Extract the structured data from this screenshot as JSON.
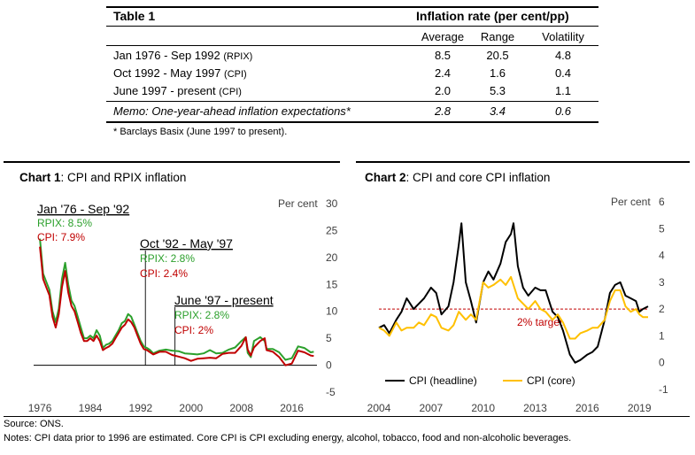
{
  "table": {
    "title": "Table 1",
    "group_header": "Inflation rate (per cent/pp)",
    "columns": [
      "Average",
      "Range",
      "Volatility"
    ],
    "rows": [
      {
        "period": "Jan 1976 - Sep 1992",
        "measure": "(RPIX)",
        "values": [
          "8.5",
          "20.5",
          "4.8"
        ]
      },
      {
        "period": "Oct 1992 - May 1997",
        "measure": "(CPI)",
        "values": [
          "2.4",
          "1.6",
          "0.4"
        ]
      },
      {
        "period": "June 1997 - present",
        "measure": "(CPI)",
        "values": [
          "2.0",
          "5.3",
          "1.1"
        ]
      }
    ],
    "memo": {
      "label": "Memo: One-year-ahead inflation expectations*",
      "values": [
        "2.8",
        "3.4",
        "0.6"
      ]
    },
    "footnote": "* Barclays Basix (June 1997 to present)."
  },
  "chart_data": [
    {
      "type": "line",
      "title_bold": "Chart 1",
      "title_rest": ": CPI and RPIX inflation",
      "ylabel": "Per cent",
      "ylim": [
        -5,
        30
      ],
      "yticks": [
        "30",
        "25",
        "20",
        "15",
        "10",
        "5",
        "0",
        "-5"
      ],
      "xticks": [
        "1976",
        "1984",
        "1992",
        "2000",
        "2008",
        "2016"
      ],
      "xlim": [
        1975,
        2020
      ],
      "annotations": [
        {
          "heading": "Jan '76 -  Sep '92",
          "rpix": "RPIX: 8.5%",
          "cpi": "CPI: 7.9%"
        },
        {
          "heading": "Oct '92 - May '97",
          "rpix": "RPIX: 2.8%",
          "cpi": "CPI: 2.4%"
        },
        {
          "heading": "June '97 - present",
          "rpix": "RPIX: 2.8%",
          "cpi": "CPI: 2%"
        }
      ],
      "period_breaks": [
        1992.75,
        1997.45
      ],
      "series": [
        {
          "name": "RPIX",
          "color": "#2ca02c",
          "x": [
            1976,
            1976.5,
            1977,
            1977.5,
            1978,
            1978.5,
            1979,
            1979.5,
            1980,
            1980.5,
            1981,
            1981.5,
            1982,
            1982.5,
            1983,
            1983.5,
            1984,
            1984.5,
            1985,
            1985.5,
            1986,
            1986.5,
            1987,
            1987.5,
            1988,
            1988.5,
            1989,
            1989.5,
            1990,
            1990.5,
            1991,
            1991.5,
            1992,
            1992.5,
            1993,
            1993.5,
            1994,
            1995,
            1996,
            1997,
            1998,
            1999,
            2000,
            2001,
            2002,
            2003,
            2004,
            2005,
            2006,
            2007,
            2008,
            2008.7,
            2009,
            2009.5,
            2010,
            2011,
            2011.7,
            2012,
            2013,
            2014,
            2015,
            2016,
            2017,
            2018,
            2019,
            2019.5
          ],
          "y": [
            23.5,
            17,
            15.5,
            14,
            10,
            8,
            10.5,
            16,
            19,
            15,
            12,
            11,
            9,
            7,
            5,
            5,
            5.5,
            5,
            6.5,
            5.5,
            3.2,
            3.8,
            4,
            4.5,
            5.5,
            6.5,
            7.8,
            8.2,
            9.5,
            9,
            7.5,
            6,
            4.5,
            3.5,
            3.2,
            2.8,
            2.2,
            2.7,
            2.9,
            2.7,
            2.6,
            2.2,
            2.1,
            2.0,
            2.2,
            2.8,
            2.2,
            2.3,
            2.9,
            3.3,
            4.5,
            5.2,
            2.3,
            1.5,
            4.5,
            5.2,
            4.5,
            3.0,
            3.0,
            2.4,
            1.0,
            1.3,
            3.5,
            3.2,
            2.4,
            2.5
          ]
        },
        {
          "name": "CPI",
          "color": "#c00000",
          "x": [
            1976,
            1976.5,
            1977,
            1977.5,
            1978,
            1978.5,
            1979,
            1979.5,
            1980,
            1980.5,
            1981,
            1981.5,
            1982,
            1982.5,
            1983,
            1983.5,
            1984,
            1984.5,
            1985,
            1985.5,
            1986,
            1986.5,
            1987,
            1987.5,
            1988,
            1988.5,
            1989,
            1989.5,
            1990,
            1990.5,
            1991,
            1991.5,
            1992,
            1992.5,
            1993,
            1993.5,
            1994,
            1995,
            1996,
            1997,
            1998,
            1999,
            2000,
            2001,
            2002,
            2003,
            2004,
            2005,
            2006,
            2007,
            2008,
            2008.7,
            2009,
            2009.5,
            2010,
            2011,
            2011.7,
            2012,
            2013,
            2014,
            2015,
            2016,
            2017,
            2018,
            2019,
            2019.5
          ],
          "y": [
            22,
            16,
            14.5,
            13,
            9,
            7,
            9.5,
            14.5,
            17.5,
            13.5,
            11,
            10,
            8,
            6,
            4.5,
            4.5,
            5,
            4.5,
            5.5,
            4.5,
            2.8,
            3.2,
            3.5,
            4,
            5,
            6,
            7,
            7.5,
            8.5,
            8,
            7,
            5.5,
            4,
            3,
            2.8,
            2.4,
            2.0,
            2.5,
            2.5,
            1.9,
            1.6,
            1.3,
            0.8,
            1.2,
            1.3,
            1.4,
            1.3,
            2.1,
            2.3,
            2.3,
            3.6,
            5.2,
            2.9,
            1.8,
            3.3,
            4.5,
            5.0,
            2.8,
            2.5,
            1.5,
            0.0,
            0.3,
            2.7,
            2.4,
            1.8,
            1.7
          ]
        }
      ]
    },
    {
      "type": "line",
      "title_bold": "Chart 2",
      "title_rest": ": CPI and core CPI inflation",
      "ylabel": "Per cent",
      "ylim": [
        -1,
        6
      ],
      "yticks": [
        "6",
        "5",
        "4",
        "3",
        "2",
        "1",
        "0",
        "-1"
      ],
      "xticks": [
        "2004",
        "2007",
        "2010",
        "2013",
        "2016",
        "2019"
      ],
      "xlim": [
        2004,
        2019.5
      ],
      "target": {
        "value": 2,
        "label": "2% target"
      },
      "legend": [
        "CPI (headline)",
        "CPI (core)"
      ],
      "series": [
        {
          "name": "CPI (headline)",
          "color": "#000000",
          "x": [
            2004,
            2004.3,
            2004.6,
            2005,
            2005.3,
            2005.6,
            2006,
            2006.3,
            2006.6,
            2007,
            2007.3,
            2007.6,
            2008,
            2008.3,
            2008.6,
            2008.75,
            2009,
            2009.3,
            2009.6,
            2010,
            2010.3,
            2010.6,
            2011,
            2011.3,
            2011.6,
            2011.75,
            2012,
            2012.3,
            2012.6,
            2013,
            2013.3,
            2013.6,
            2014,
            2014.3,
            2014.6,
            2015,
            2015.3,
            2015.6,
            2016,
            2016.3,
            2016.6,
            2017,
            2017.3,
            2017.6,
            2017.9,
            2018.2,
            2018.5,
            2018.8,
            2019,
            2019.2,
            2019.5
          ],
          "y": [
            1.3,
            1.4,
            1.1,
            1.6,
            1.9,
            2.4,
            2.0,
            2.2,
            2.4,
            2.8,
            2.6,
            1.8,
            2.1,
            3.0,
            4.4,
            5.2,
            3.0,
            2.3,
            1.5,
            3.0,
            3.4,
            3.1,
            3.7,
            4.5,
            4.8,
            5.2,
            3.6,
            2.8,
            2.5,
            2.8,
            2.7,
            2.7,
            1.9,
            1.7,
            1.2,
            0.3,
            0.0,
            0.1,
            0.3,
            0.4,
            0.6,
            1.6,
            2.6,
            2.9,
            3.0,
            2.5,
            2.4,
            2.3,
            1.9,
            2.0,
            2.1
          ]
        },
        {
          "name": "CPI (core)",
          "color": "#ffc000",
          "x": [
            2004,
            2004.3,
            2004.6,
            2005,
            2005.3,
            2005.6,
            2006,
            2006.3,
            2006.6,
            2007,
            2007.3,
            2007.6,
            2008,
            2008.3,
            2008.6,
            2009,
            2009.3,
            2009.6,
            2010,
            2010.3,
            2010.6,
            2011,
            2011.3,
            2011.6,
            2012,
            2012.3,
            2012.6,
            2013,
            2013.3,
            2013.6,
            2014,
            2014.3,
            2014.6,
            2015,
            2015.3,
            2015.6,
            2016,
            2016.3,
            2016.6,
            2017,
            2017.3,
            2017.6,
            2017.9,
            2018.2,
            2018.5,
            2018.8,
            2019,
            2019.2,
            2019.5
          ],
          "y": [
            1.3,
            1.2,
            1.0,
            1.5,
            1.2,
            1.3,
            1.3,
            1.5,
            1.4,
            1.8,
            1.7,
            1.3,
            1.2,
            1.4,
            1.9,
            1.6,
            1.8,
            1.6,
            3.0,
            2.8,
            2.9,
            3.1,
            2.9,
            3.2,
            2.4,
            2.2,
            2.0,
            2.3,
            2.0,
            1.9,
            1.6,
            1.8,
            1.5,
            0.9,
            0.9,
            1.1,
            1.2,
            1.3,
            1.3,
            1.6,
            2.3,
            2.7,
            2.7,
            2.1,
            1.9,
            2.0,
            1.8,
            1.7,
            1.7
          ]
        }
      ]
    }
  ],
  "footer": {
    "source": "Source: ONS.",
    "notes": "Notes: CPI data prior to 1996 are estimated. Core CPI is CPI excluding energy, alcohol, tobacco, food and non-alcoholic beverages."
  }
}
